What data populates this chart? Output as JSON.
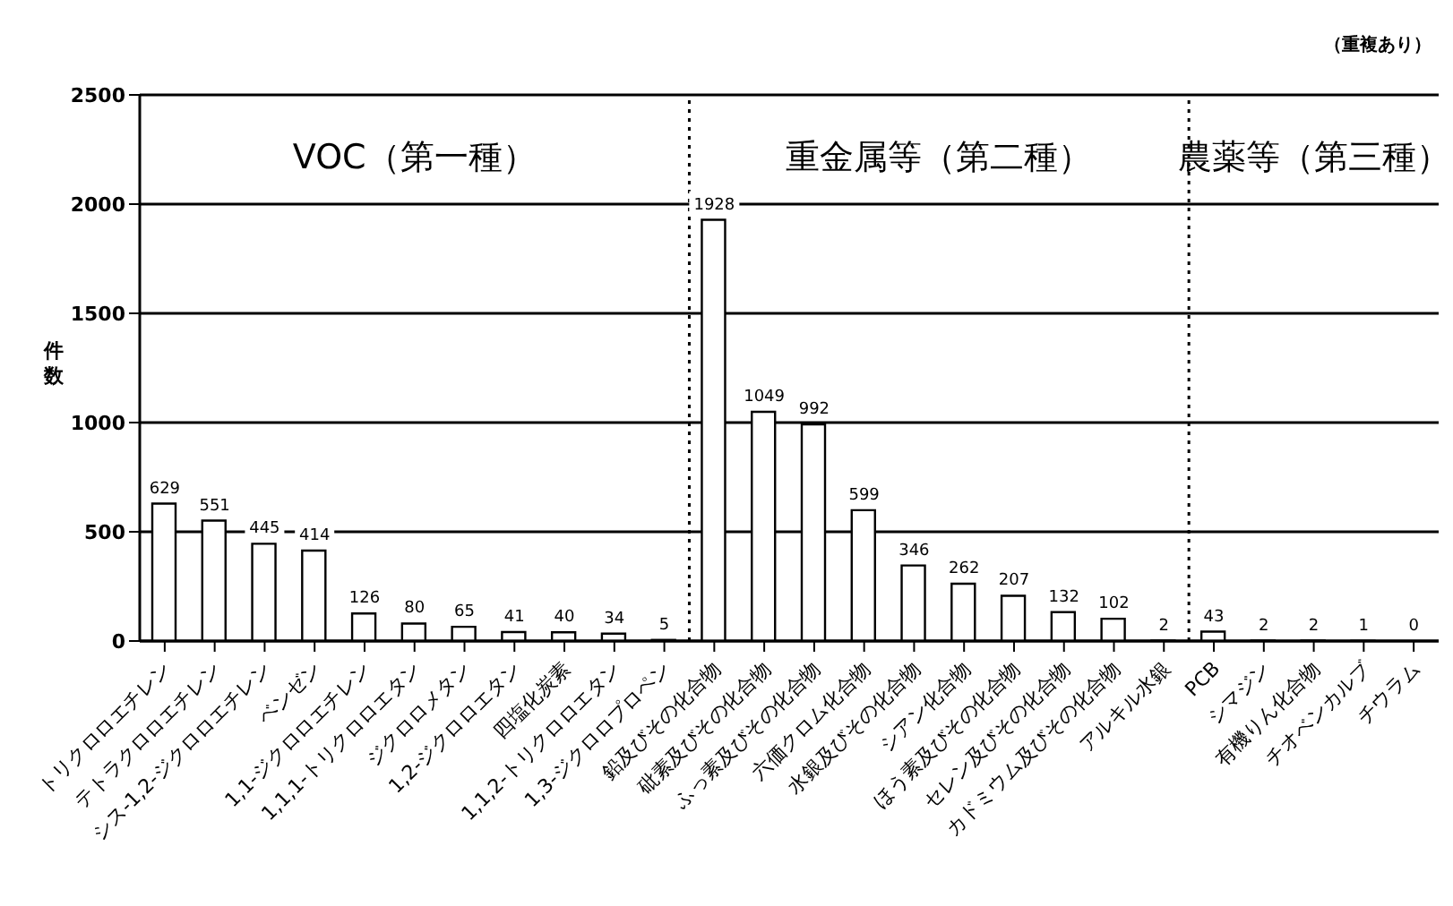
{
  "chart_data": {
    "type": "bar",
    "ylabel": "件数",
    "categories": [
      "トリクロロエチレン",
      "テトラクロロエチレン",
      "シス-1,2-ジクロロエチレン",
      "ベンゼン",
      "1,1-ジクロロエチレン",
      "1,1,1-トリクロロエタン",
      "ジクロロメタン",
      "1,2-ジクロロエタン",
      "四塩化炭素",
      "1,1,2-トリクロロエタン",
      "1,3-ジクロロプロペン",
      "鉛及びその化合物",
      "砒素及びその化合物",
      "ふっ素及びその化合物",
      "六価クロム化合物",
      "水銀及びその化合物",
      "シアン化合物",
      "ほう素及びその化合物",
      "セレン及びその化合物",
      "カドミウム及びその化合物",
      "アルキル水銀",
      "PCB",
      "シマジン",
      "有機りん化合物",
      "チオベンカルブ",
      "チウラム"
    ],
    "values": [
      629,
      551,
      445,
      414,
      126,
      80,
      65,
      41,
      40,
      34,
      5,
      1928,
      1049,
      992,
      599,
      346,
      262,
      207,
      132,
      102,
      2,
      43,
      2,
      2,
      1,
      0
    ],
    "color": "#ffffff",
    "ylim": [
      0,
      2500
    ],
    "yticks": [
      0,
      500,
      1000,
      1500,
      2000,
      2500
    ],
    "grid": "y",
    "data_labels": true,
    "legend": false,
    "annotations": [
      "VOC（第一種）",
      "重金属等（第二種）",
      "農薬等（第三種）",
      "（重複あり）"
    ]
  }
}
